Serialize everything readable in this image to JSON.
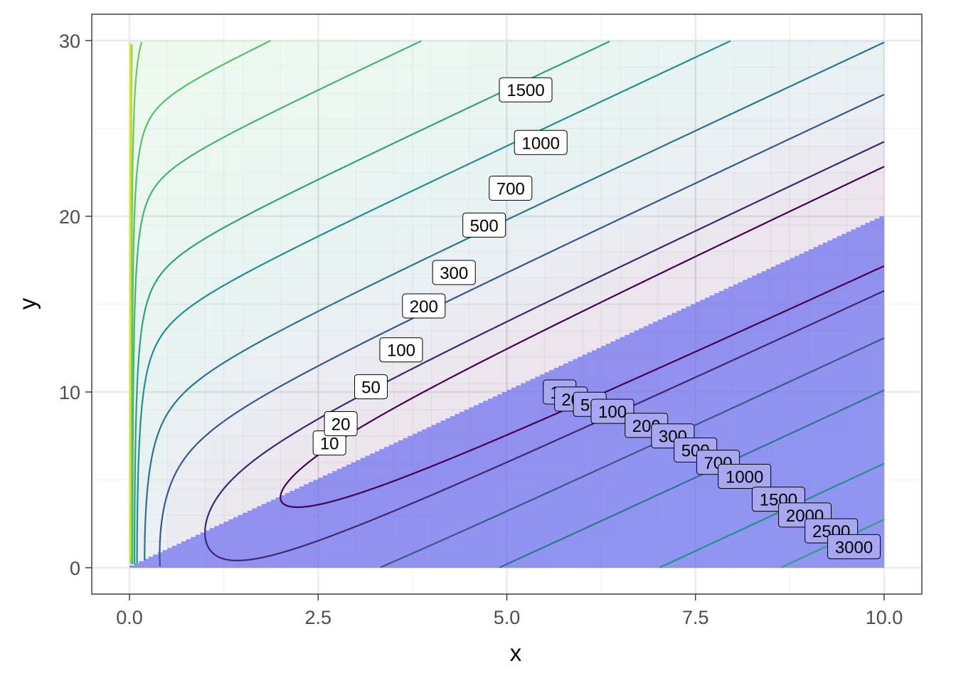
{
  "chart_data": {
    "type": "contour",
    "title": "",
    "xlabel": "x",
    "ylabel": "y",
    "xlim": [
      -0.5,
      10.5
    ],
    "ylim": [
      -1.5,
      31.5
    ],
    "x_ticks": [
      0,
      2.5,
      5,
      7.5,
      10
    ],
    "x_tick_labels": [
      "0.0",
      "2.5",
      "5.0",
      "7.5",
      "10.0"
    ],
    "y_ticks": [
      0,
      10,
      20,
      30
    ],
    "y_tick_labels": [
      "0",
      "10",
      "20",
      "30"
    ],
    "grid": true,
    "legend": "none",
    "data_domain": {
      "x": [
        0,
        10
      ],
      "y": [
        0,
        30
      ]
    },
    "shaded_region": {
      "description": "y < 2x",
      "fill_color": "#6f6ff0",
      "boundary": [
        [
          0,
          0
        ],
        [
          10,
          20
        ]
      ]
    },
    "contour_levels": [
      10,
      20,
      50,
      100,
      200,
      300,
      500,
      700,
      1000,
      1500,
      2000,
      2500,
      3000
    ],
    "upper_labels": [
      {
        "level": 10,
        "text": "10",
        "x": 2.65,
        "y": 7.1
      },
      {
        "level": 20,
        "text": "20",
        "x": 2.8,
        "y": 8.2
      },
      {
        "level": 50,
        "text": "50",
        "x": 3.2,
        "y": 10.3
      },
      {
        "level": 100,
        "text": "100",
        "x": 3.6,
        "y": 12.4
      },
      {
        "level": 200,
        "text": "200",
        "x": 3.9,
        "y": 14.9
      },
      {
        "level": 300,
        "text": "300",
        "x": 4.3,
        "y": 16.8
      },
      {
        "level": 500,
        "text": "500",
        "x": 4.7,
        "y": 19.5
      },
      {
        "level": 700,
        "text": "700",
        "x": 5.05,
        "y": 21.6
      },
      {
        "level": 1000,
        "text": "1000",
        "x": 5.45,
        "y": 24.2
      },
      {
        "level": 1500,
        "text": "1500",
        "x": 5.25,
        "y": 27.2
      }
    ],
    "lower_labels": [
      {
        "level": 10,
        "text": "10",
        "x": 5.7,
        "y": 10.0
      },
      {
        "level": 20,
        "text": "20",
        "x": 5.85,
        "y": 9.6
      },
      {
        "level": 50,
        "text": "50",
        "x": 6.1,
        "y": 9.3
      },
      {
        "level": 100,
        "text": "100",
        "x": 6.4,
        "y": 8.9
      },
      {
        "level": 200,
        "text": "200",
        "x": 6.85,
        "y": 8.1
      },
      {
        "level": 300,
        "text": "300",
        "x": 7.2,
        "y": 7.5
      },
      {
        "level": 500,
        "text": "500",
        "x": 7.5,
        "y": 6.7
      },
      {
        "level": 700,
        "text": "700",
        "x": 7.8,
        "y": 6.0
      },
      {
        "level": 1000,
        "text": "1000",
        "x": 8.15,
        "y": 5.2
      },
      {
        "level": 1500,
        "text": "1500",
        "x": 8.6,
        "y": 3.9
      },
      {
        "level": 2000,
        "text": "2000",
        "x": 8.95,
        "y": 3.0
      },
      {
        "level": 2500,
        "text": "2500",
        "x": 9.3,
        "y": 2.1
      },
      {
        "level": 3000,
        "text": "3000",
        "x": 9.6,
        "y": 1.2
      }
    ],
    "colors": {
      "panel_border": "#333333",
      "grid_major": "#ebebeb",
      "grid_minor": "#f4f4f4",
      "contour_low": "#440154",
      "contour_mid": "#31688e",
      "contour_high": "#fde725"
    }
  }
}
